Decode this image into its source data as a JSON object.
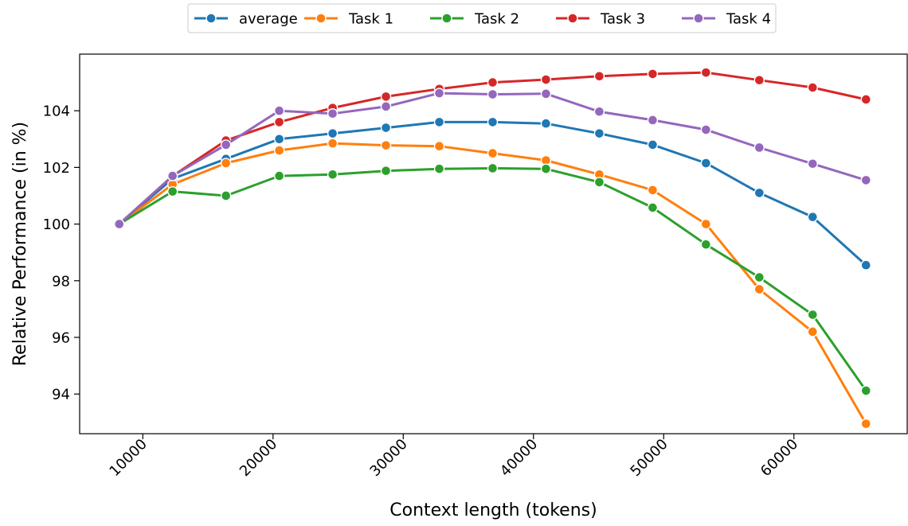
{
  "chart_data": {
    "type": "line",
    "xlabel": "Context length (tokens)",
    "ylabel": "Relative Performance (in %)",
    "xlim": [
      5150,
      68700
    ],
    "ylim": [
      92.6,
      106.0
    ],
    "xticks": [
      10000,
      20000,
      30000,
      40000,
      50000,
      60000
    ],
    "yticks": [
      94,
      96,
      98,
      100,
      102,
      104
    ],
    "grid": false,
    "legend_position": "top-center",
    "x": [
      8192,
      12288,
      16384,
      20480,
      24576,
      28672,
      32768,
      36864,
      40960,
      45056,
      49152,
      53248,
      57344,
      61440,
      65536
    ],
    "series": [
      {
        "name": "average",
        "color": "#1f77b4",
        "values": [
          100.0,
          101.6,
          102.3,
          103.0,
          103.2,
          103.4,
          103.6,
          103.6,
          103.55,
          103.2,
          102.8,
          102.15,
          101.1,
          100.25,
          98.55
        ]
      },
      {
        "name": "Task 1",
        "color": "#ff7f0e",
        "values": [
          100.0,
          101.4,
          102.15,
          102.6,
          102.85,
          102.78,
          102.75,
          102.5,
          102.25,
          101.75,
          101.2,
          100.0,
          97.7,
          96.2,
          92.95
        ]
      },
      {
        "name": "Task 2",
        "color": "#2ca02c",
        "values": [
          100.0,
          101.15,
          101.0,
          101.7,
          101.75,
          101.88,
          101.95,
          101.97,
          101.95,
          101.48,
          100.58,
          99.28,
          98.12,
          96.8,
          94.12
        ]
      },
      {
        "name": "Task 3",
        "color": "#d62728",
        "values": [
          100.0,
          101.7,
          102.95,
          103.6,
          104.1,
          104.5,
          104.77,
          105.0,
          105.1,
          105.22,
          105.3,
          105.35,
          105.08,
          104.82,
          104.4
        ]
      },
      {
        "name": "Task 4",
        "color": "#9467bd",
        "values": [
          100.0,
          101.7,
          102.8,
          104.0,
          103.9,
          104.15,
          104.62,
          104.58,
          104.6,
          103.97,
          103.67,
          103.33,
          102.7,
          102.13,
          101.55
        ]
      }
    ]
  }
}
